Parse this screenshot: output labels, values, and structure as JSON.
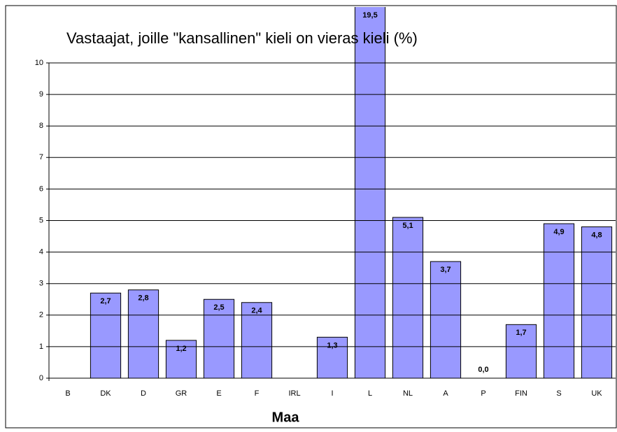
{
  "chart_data": {
    "type": "bar",
    "title": "Vastaajat, joille \"kansallinen\" kieli on vieras kieli (%)",
    "x_label": "Maa",
    "categories": [
      "B",
      "DK",
      "D",
      "GR",
      "E",
      "F",
      "IRL",
      "I",
      "L",
      "NL",
      "A",
      "P",
      "FIN",
      "S",
      "UK"
    ],
    "values": [
      null,
      2.7,
      2.8,
      1.2,
      2.5,
      2.4,
      null,
      1.3,
      19.5,
      5.1,
      3.7,
      0.0,
      1.7,
      4.9,
      4.8
    ],
    "value_labels": [
      null,
      "2,7",
      "2,8",
      "1,2",
      "2,5",
      "2,4",
      null,
      "1,3",
      "19,5",
      "5,1",
      "3,7",
      "0,0",
      "1,7",
      "4,9",
      "4,8"
    ],
    "color": "#9999ff",
    "ylim": [
      0,
      10
    ],
    "yticks": [
      0,
      1,
      2,
      3,
      4,
      5,
      6,
      7,
      8,
      9,
      10
    ],
    "grid": true
  }
}
